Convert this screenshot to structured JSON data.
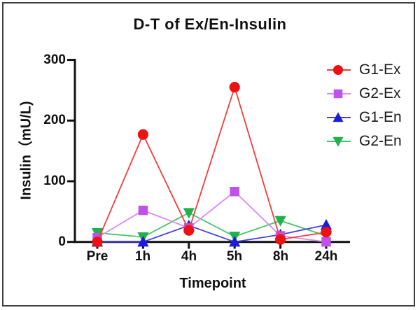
{
  "figure": {
    "background": "#ffffff",
    "border_color": "#3f3f3f",
    "axis_color": "#111111",
    "text_color": "#111111"
  },
  "chart_data": {
    "type": "line",
    "title": "D-T of Ex/En-Insulin",
    "xlabel": "Timepoint",
    "ylabel": "Insulin（mU/L)",
    "categories": [
      "Pre",
      "1h",
      "4h",
      "5h",
      "8h",
      "24h"
    ],
    "yticks": [
      0,
      100,
      200,
      300
    ],
    "ylim": [
      0,
      300
    ],
    "grid": false,
    "legend_position": "top-right",
    "series": [
      {
        "name": "G1-Ex",
        "marker": "circle",
        "marker_color": "#ee1111",
        "line_color": "#f23c3c",
        "values": [
          0,
          177,
          19,
          255,
          4,
          16
        ]
      },
      {
        "name": "G2-Ex",
        "marker": "square",
        "marker_color": "#be52ea",
        "line_color": "#d98af5",
        "values": [
          7,
          52,
          23,
          83,
          10,
          0
        ]
      },
      {
        "name": "G1-En",
        "marker": "triangle-up",
        "marker_color": "#1c1ce0",
        "line_color": "#4343e2",
        "values": [
          0,
          0,
          27,
          0,
          12,
          28
        ]
      },
      {
        "name": "G2-En",
        "marker": "triangle-down",
        "marker_color": "#21b14b",
        "line_color": "#47c565",
        "values": [
          15,
          8,
          48,
          9,
          35,
          10
        ]
      }
    ]
  }
}
